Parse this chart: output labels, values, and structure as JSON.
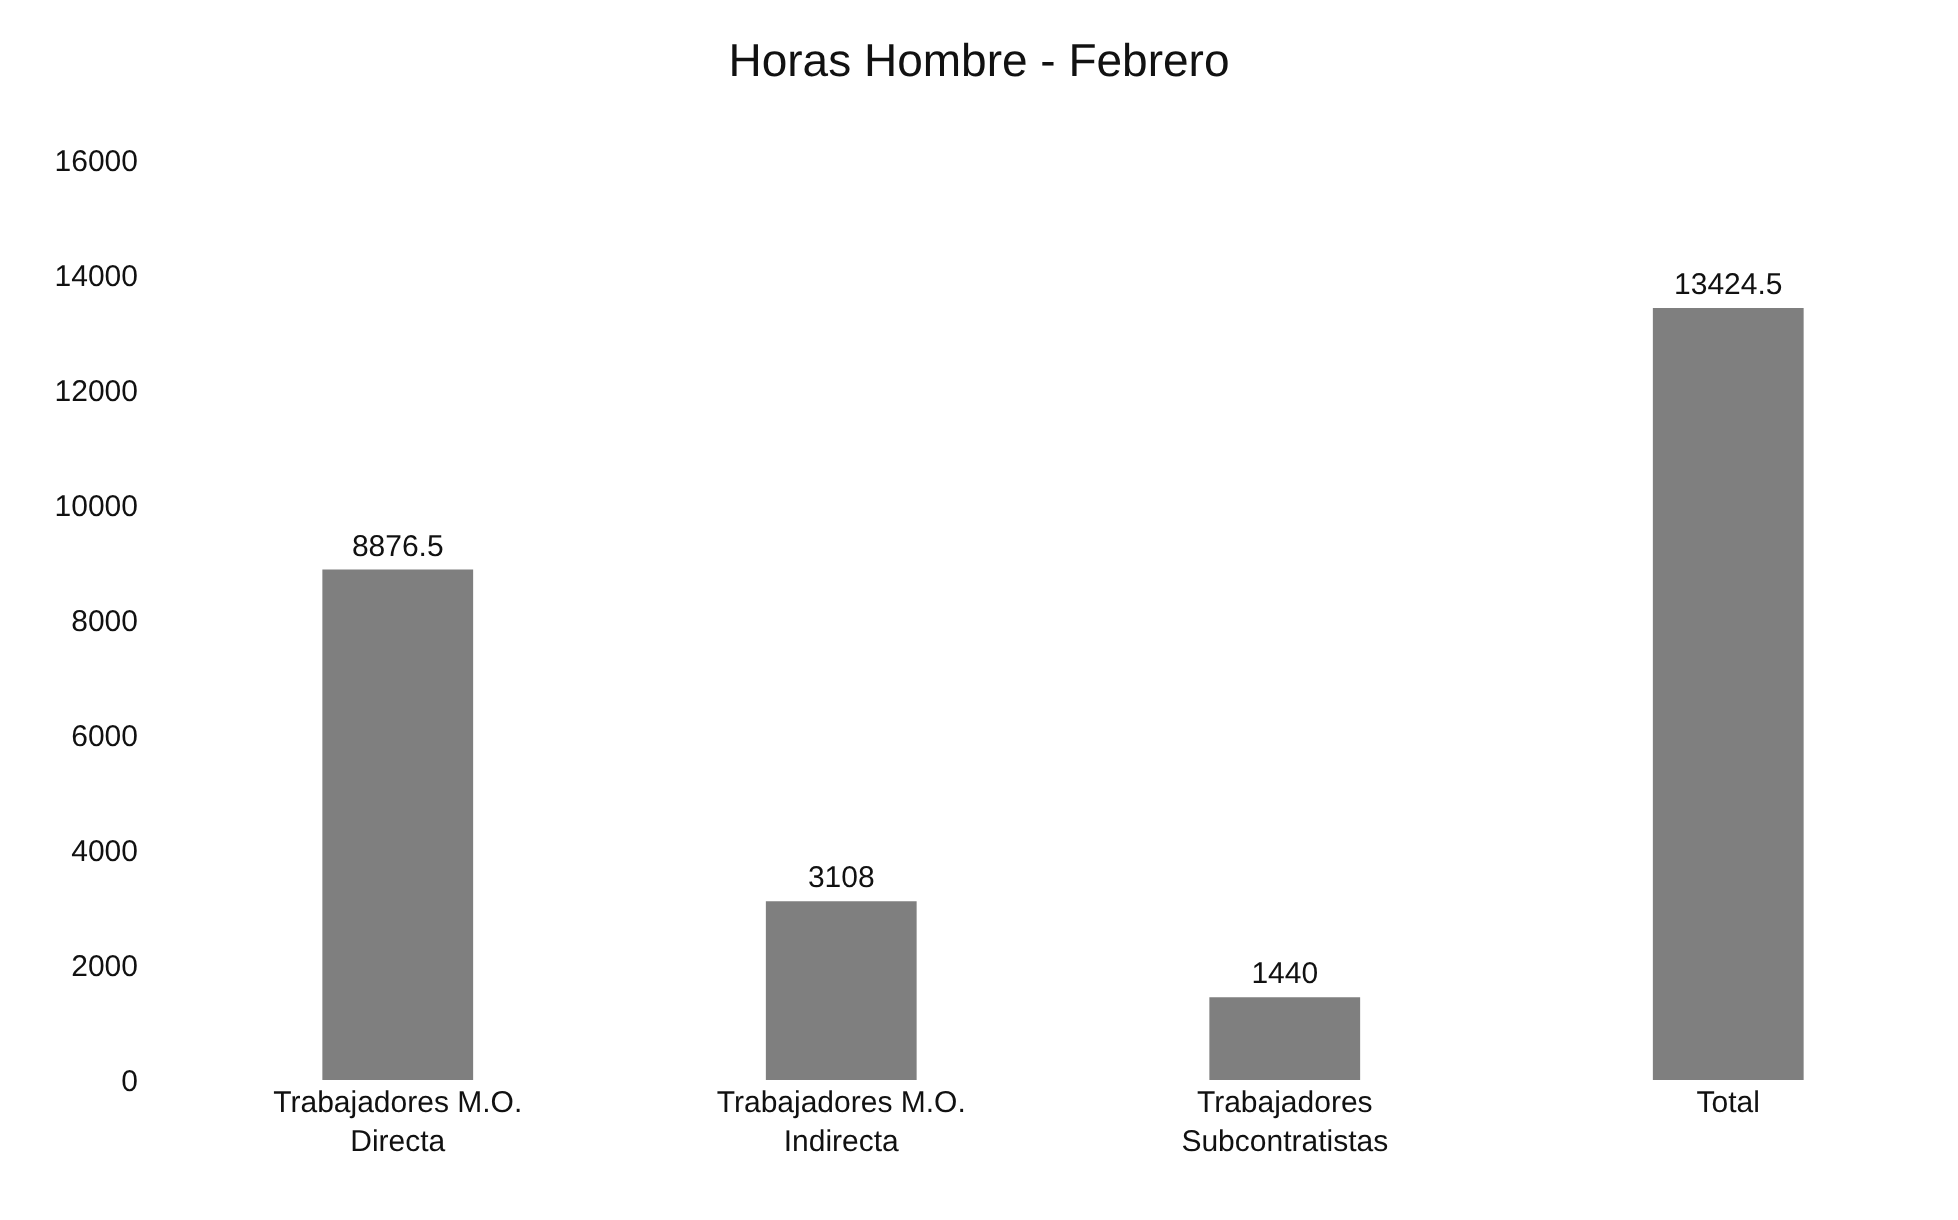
{
  "chart_data": {
    "type": "bar",
    "title": "Horas Hombre - Febrero",
    "categories": [
      "Trabajadores M.O. Directa",
      "Trabajadores M.O. Indirecta",
      "Trabajadores Subcontratistas",
      "Total"
    ],
    "values": [
      8876.5,
      3108,
      1440,
      13424.5
    ],
    "color": "#7f7f7f",
    "ylim": [
      0,
      16000
    ],
    "yticks": [
      0,
      2000,
      4000,
      6000,
      8000,
      10000,
      12000,
      14000,
      16000
    ],
    "data_labels": true
  }
}
